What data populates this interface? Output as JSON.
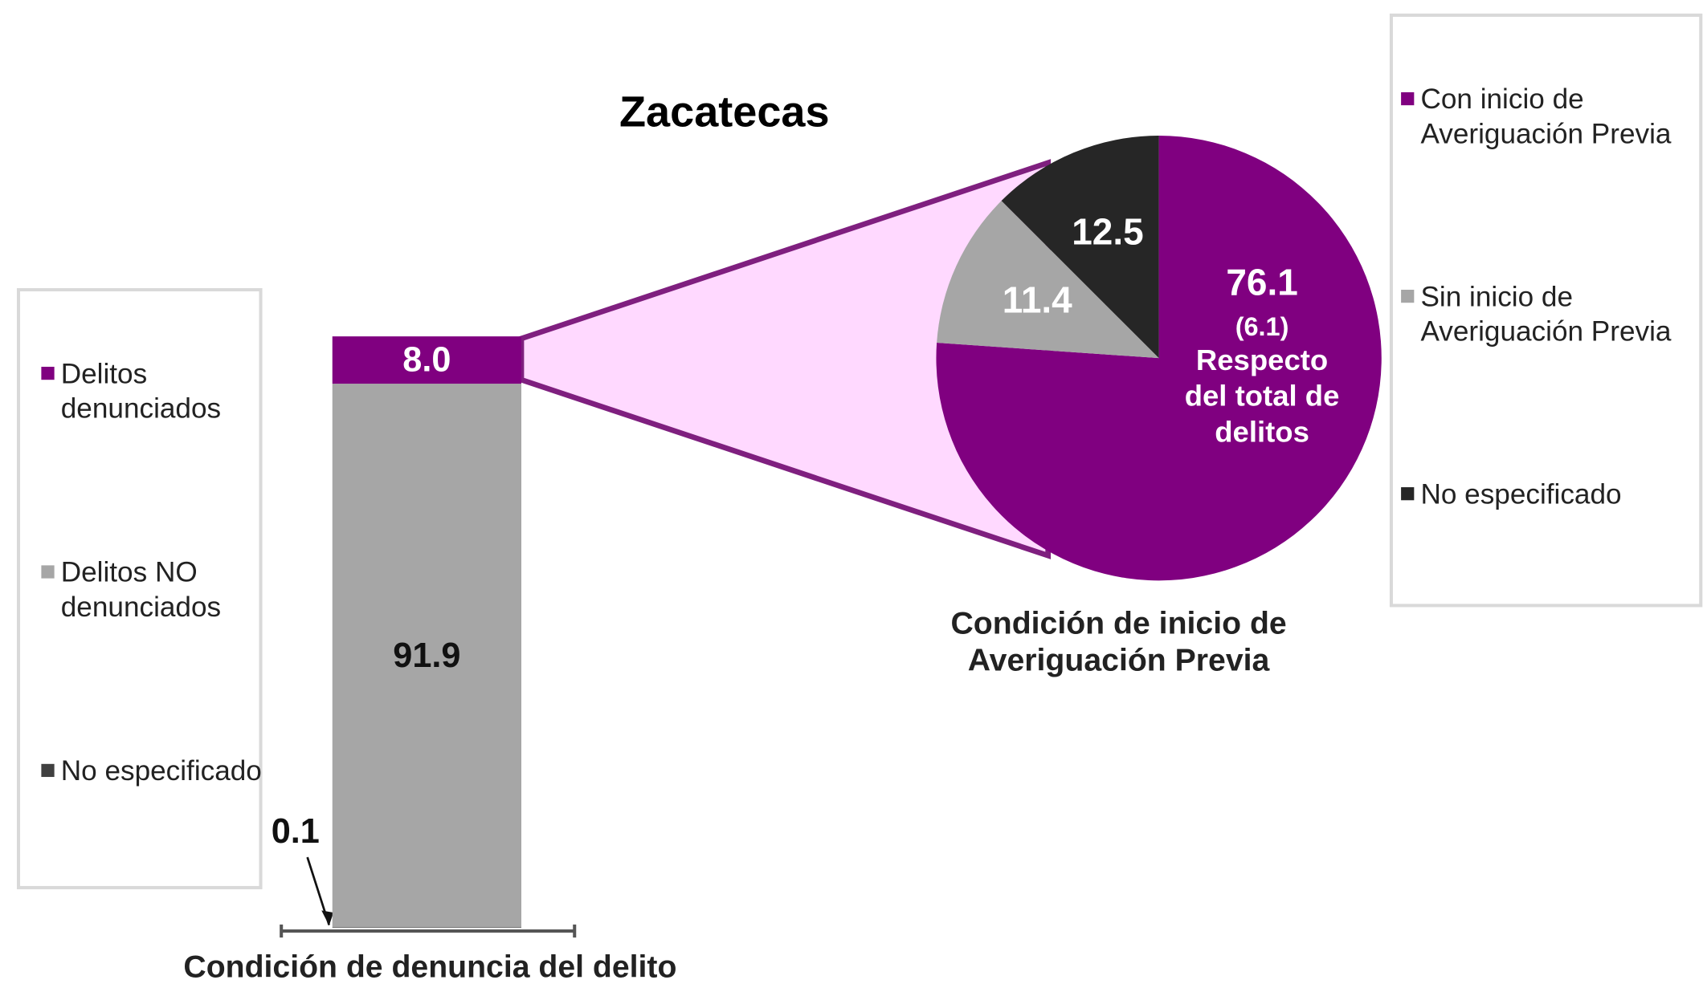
{
  "chart_data": [
    {
      "type": "stacked_bar",
      "title": "Zacatecas",
      "x_label": "Condición de denuncia del delito",
      "series": [
        {
          "name": "Delitos denunciados",
          "color": "#800080",
          "values": [
            8.0
          ],
          "value_labels": [
            "8.0"
          ]
        },
        {
          "name": "Delitos NO denunciados",
          "color": "#a6a6a6",
          "values": [
            91.9
          ]
        },
        {
          "name": "No especificado",
          "color": "#404040",
          "values": [
            0.1
          ]
        }
      ]
    },
    {
      "type": "pie",
      "x_label": "Condición de inicio de Averiguación Previa",
      "categories": [
        "Con inicio de Averiguación Previa",
        "Sin inicio de Averiguación Previa",
        "No especificado"
      ],
      "values": [
        76.1,
        11.4,
        12.5
      ],
      "colors": [
        "#800080",
        "#a6a6a6",
        "#262626"
      ],
      "annotations": [
        "(6.1)",
        "Respecto del total de delitos"
      ]
    }
  ]
}
